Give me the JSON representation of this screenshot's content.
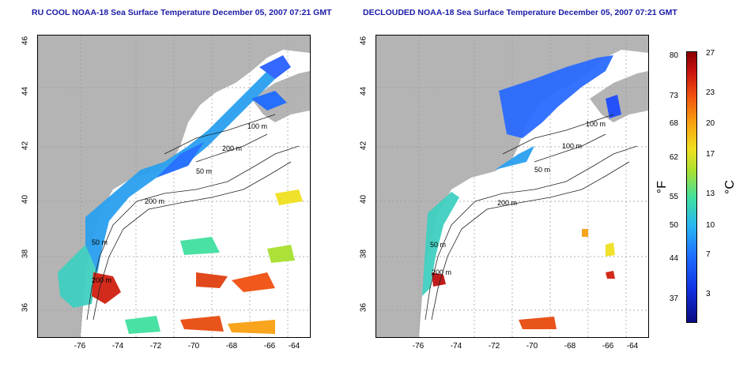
{
  "panels": [
    {
      "title": "RU COOL NOAA-18 Sea Surface Temperature December 05, 2007 07:21 GMT",
      "contour_labels": [
        "100 m",
        "200 m",
        "50 m",
        "200 m",
        "50 m",
        "200 m"
      ]
    },
    {
      "title": "DECLOUDED NOAA-18 Sea Surface Temperature December 05, 2007 07:21 GMT",
      "contour_labels": [
        "100 m",
        "100 m",
        "50 m",
        "200 m",
        "50 m",
        "200 m"
      ]
    }
  ],
  "axes": {
    "lat_ticks": [
      "46",
      "44",
      "42",
      "40",
      "38",
      "36"
    ],
    "lon_ticks": [
      "-76",
      "-74",
      "-72",
      "-70",
      "-68",
      "-66",
      "-64"
    ]
  },
  "colorbar": {
    "fahrenheit": [
      "80",
      "73",
      "68",
      "62",
      "55",
      "50",
      "44",
      "37"
    ],
    "celsius": [
      "27",
      "23",
      "20",
      "17",
      "13",
      "10",
      "7",
      "3"
    ],
    "unit_f": "°F",
    "unit_c": "°C"
  },
  "colors": {
    "land": "#b4b4b4",
    "ocean": "#ffffff",
    "title": "#1a1aa6"
  }
}
